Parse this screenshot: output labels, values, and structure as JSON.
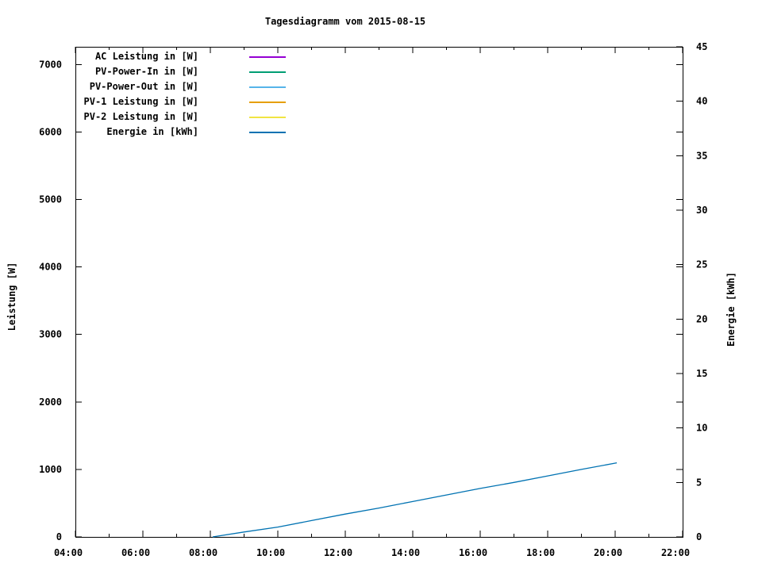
{
  "title": "Tagesdiagramm vom 2015-08-15",
  "y1_axis_label": "Leistung [W]",
  "y2_axis_label": "Energie [kWh]",
  "legend": {
    "entries": [
      {
        "label": "AC Leistung in [W]",
        "color": "#9400d3"
      },
      {
        "label": "PV-Power-In in [W]",
        "color": "#009e73"
      },
      {
        "label": "PV-Power-Out in [W]",
        "color": "#56b4e9"
      },
      {
        "label": "PV-1 Leistung in [W]",
        "color": "#e69f00"
      },
      {
        "label": "PV-2 Leistung in [W]",
        "color": "#f0e442"
      },
      {
        "label": "Energie in [kWh]",
        "color": "#0072b2"
      }
    ]
  },
  "chart_data": {
    "type": "line",
    "title": "Tagesdiagramm vom 2015-08-15",
    "grid": false,
    "legend_position": "top-left-inside",
    "x_axis": {
      "label": "",
      "unit": "time of day",
      "min_hour": 4,
      "max_hour": 22,
      "major_tick_hours": 2,
      "minor_tick_hours": 1,
      "tick_labels": [
        "04:00",
        "06:00",
        "08:00",
        "10:00",
        "12:00",
        "14:00",
        "16:00",
        "18:00",
        "20:00",
        "22:00"
      ]
    },
    "y1_axis": {
      "label": "Leistung [W]",
      "min": 0,
      "max": 7000,
      "tick_step": 1000,
      "tick_labels": [
        "0",
        "1000",
        "2000",
        "3000",
        "4000",
        "5000",
        "6000",
        "7000"
      ]
    },
    "y2_axis": {
      "label": "Energie [kWh]",
      "min": 0,
      "max": 45,
      "tick_step": 5,
      "tick_labels": [
        "0",
        "5",
        "10",
        "15",
        "20",
        "25",
        "30",
        "35",
        "40",
        "45"
      ]
    },
    "series": [
      {
        "name": "AC Leistung in [W]",
        "color": "#9400d3",
        "axis": "y1",
        "points": []
      },
      {
        "name": "PV-Power-In in [W]",
        "color": "#009e73",
        "axis": "y1",
        "points": []
      },
      {
        "name": "PV-Power-Out in [W]",
        "color": "#56b4e9",
        "axis": "y1",
        "points": []
      },
      {
        "name": "PV-1 Leistung in [W]",
        "color": "#e69f00",
        "axis": "y1",
        "points": []
      },
      {
        "name": "PV-2 Leistung in [W]",
        "color": "#f0e442",
        "axis": "y1",
        "points": []
      },
      {
        "name": "Energie in [kWh]",
        "color": "#0072b2",
        "axis": "y2",
        "points": [
          [
            8.07,
            0.0
          ],
          [
            9.0,
            0.45
          ],
          [
            10.0,
            0.9
          ],
          [
            11.0,
            1.5
          ],
          [
            12.0,
            2.1
          ],
          [
            13.0,
            2.65
          ],
          [
            14.0,
            3.25
          ],
          [
            15.0,
            3.85
          ],
          [
            16.0,
            4.45
          ],
          [
            17.0,
            5.0
          ],
          [
            18.0,
            5.6
          ],
          [
            19.0,
            6.2
          ],
          [
            20.05,
            6.8
          ]
        ]
      }
    ]
  }
}
